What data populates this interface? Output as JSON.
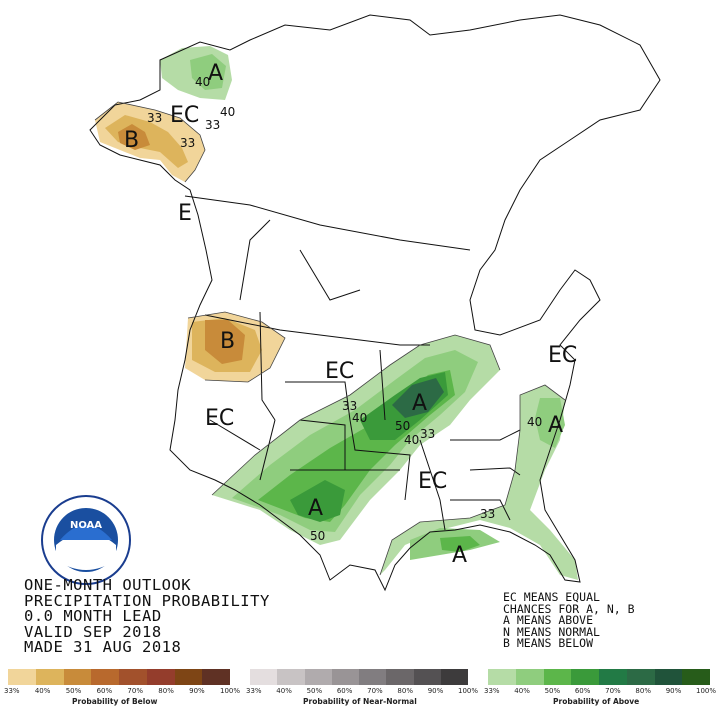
{
  "title_lines": [
    "ONE-MONTH OUTLOOK",
    "PRECIPITATION PROBABILITY",
    "0.0 MONTH LEAD",
    "VALID SEP 2018",
    "MADE 31 AUG 2018"
  ],
  "legend_notes": [
    "EC MEANS EQUAL",
    "CHANCES FOR A, N, B",
    "A MEANS ABOVE",
    "N MEANS NORMAL",
    "B MEANS BELOW"
  ],
  "map_labels": {
    "ec_alaska": "EC",
    "a_alaska": "A",
    "b_alaska": "B",
    "e_coast": "E",
    "b_northwest": "B",
    "ec_plains": "EC",
    "ec_west": "EC",
    "a_midwest": "A",
    "ec_east": "EC",
    "ec_northeast": "EC",
    "a_atlantic": "A",
    "a_texas": "A",
    "a_gulf": "A"
  },
  "contour_labels": {
    "c33_ak1": "33",
    "c40_ak1": "40",
    "c40_ak2": "40",
    "c33_ak2": "33",
    "c33_ak3": "33",
    "c33_mw": "33",
    "c40_mw": "40",
    "c50_mw": "50",
    "c33_mw2": "33",
    "c40_mw3": "40",
    "c40_atl": "40",
    "c33_se": "33",
    "c50_tx": "50"
  },
  "legend_scales": {
    "below": {
      "caption": "Probability of Below",
      "colors": [
        "#f1d59a",
        "#ddb45c",
        "#c88b3a",
        "#b8692d",
        "#a2512c",
        "#943d2c",
        "#7e4515",
        "#5f3124"
      ],
      "ticks": [
        "33%",
        "40%",
        "50%",
        "60%",
        "70%",
        "80%",
        "90%",
        "100%"
      ]
    },
    "normal": {
      "caption": "Probability of Near-Normal",
      "colors": [
        "#e4dedf",
        "#c8c3c4",
        "#b0abad",
        "#999496",
        "#817d80",
        "#6b6769",
        "#545153",
        "#3d3b3c"
      ],
      "ticks": [
        "33%",
        "40%",
        "50%",
        "60%",
        "70%",
        "80%",
        "90%",
        "100%"
      ]
    },
    "above": {
      "caption": "Probability of Above",
      "colors": [
        "#b5dca6",
        "#8fcd7e",
        "#5cb64a",
        "#3a9a3a",
        "#227a45",
        "#2c6a45",
        "#20533a",
        "#275c1a"
      ],
      "ticks": [
        "33%",
        "40%",
        "50%",
        "60%",
        "70%",
        "80%",
        "90%",
        "100%"
      ]
    }
  },
  "logo": {
    "text": "NOAA",
    "ring_text": "NATIONAL OCEANIC AND ATMOSPHERIC ADMINISTRATION · U.S. DEPARTMENT OF COMMERCE"
  },
  "colors": {
    "above_33": "#b5dca6",
    "above_40": "#8fcd7e",
    "above_50": "#5cb64a",
    "above_60": "#3a9a3a",
    "above_70": "#2c6a45",
    "below_33": "#f1d59a",
    "below_40": "#ddb45c",
    "below_50": "#c88b3a"
  }
}
